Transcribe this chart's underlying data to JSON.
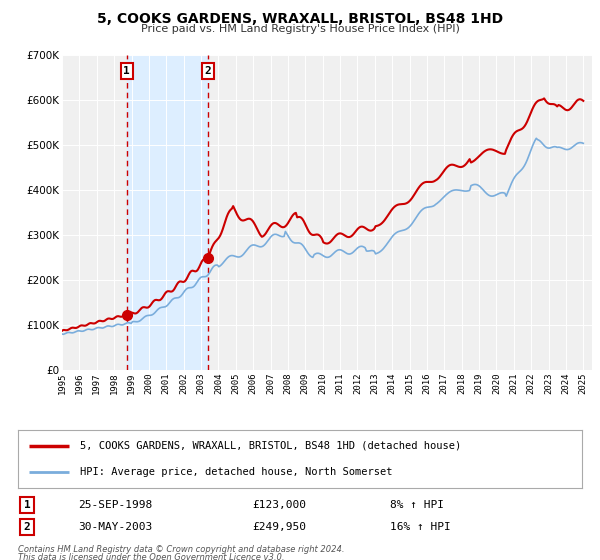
{
  "title": "5, COOKS GARDENS, WRAXALL, BRISTOL, BS48 1HD",
  "subtitle": "Price paid vs. HM Land Registry's House Price Index (HPI)",
  "ylim": [
    0,
    700000
  ],
  "yticks": [
    0,
    100000,
    200000,
    300000,
    400000,
    500000,
    600000,
    700000
  ],
  "ytick_labels": [
    "£0",
    "£100K",
    "£200K",
    "£300K",
    "£400K",
    "£500K",
    "£600K",
    "£700K"
  ],
  "xlim_start": 1995.0,
  "xlim_end": 2025.5,
  "xticks": [
    1995,
    1996,
    1997,
    1998,
    1999,
    2000,
    2001,
    2002,
    2003,
    2004,
    2005,
    2006,
    2007,
    2008,
    2009,
    2010,
    2011,
    2012,
    2013,
    2014,
    2015,
    2016,
    2017,
    2018,
    2019,
    2020,
    2021,
    2022,
    2023,
    2024,
    2025
  ],
  "property_color": "#cc0000",
  "hpi_color": "#7aaddc",
  "shade_color": "#ddeeff",
  "transaction1_date": 1998.73,
  "transaction1_price": 123000,
  "transaction1_label": "1",
  "transaction1_display": "25-SEP-1998",
  "transaction1_price_display": "£123,000",
  "transaction1_hpi": "8% ↑ HPI",
  "transaction2_date": 2003.41,
  "transaction2_price": 249950,
  "transaction2_label": "2",
  "transaction2_display": "30-MAY-2003",
  "transaction2_price_display": "£249,950",
  "transaction2_hpi": "16% ↑ HPI",
  "legend_property": "5, COOKS GARDENS, WRAXALL, BRISTOL, BS48 1HD (detached house)",
  "legend_hpi": "HPI: Average price, detached house, North Somerset",
  "footnote1": "Contains HM Land Registry data © Crown copyright and database right 2024.",
  "footnote2": "This data is licensed under the Open Government Licence v3.0.",
  "background_color": "#ffffff",
  "plot_bg_color": "#f0f0f0"
}
